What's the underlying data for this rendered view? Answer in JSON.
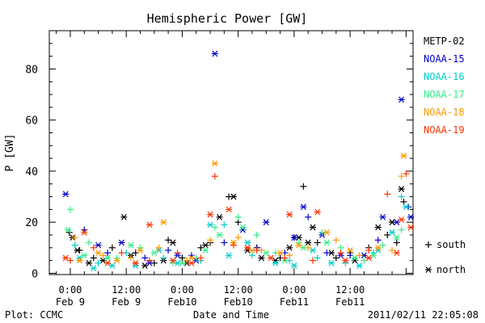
{
  "chart_data": {
    "type": "scatter",
    "title": "Hemispheric Power [GW]",
    "xlabel": "Date and Time",
    "ylabel": "P [GW]",
    "ylim": [
      -0.5,
      95
    ],
    "yticks": [
      0,
      20,
      40,
      60,
      80
    ],
    "x_unit": "hours since 2011-02-09 00:00 UT",
    "xlim": [
      -4.5,
      73.5
    ],
    "xticks": [
      {
        "x": 0,
        "line1": "0:00",
        "line2": "Feb 9"
      },
      {
        "x": 12,
        "line1": "12:00",
        "line2": "Feb 9"
      },
      {
        "x": 24,
        "line1": "0:00",
        "line2": "Feb10"
      },
      {
        "x": 36,
        "line1": "12:00",
        "line2": "Feb10"
      },
      {
        "x": 48,
        "line1": "0:00",
        "line2": "Feb11"
      },
      {
        "x": 60,
        "line1": "12:00",
        "line2": "Feb11"
      }
    ],
    "legend_position": "right",
    "marker_legend": [
      {
        "symbol": "+",
        "label": "south"
      },
      {
        "symbol": "*",
        "label": "north"
      }
    ],
    "series": [
      {
        "name": "METP-02",
        "color": "#000000",
        "south": [
          [
            -0.2,
            16
          ],
          [
            2,
            9
          ],
          [
            5,
            6
          ],
          [
            9,
            10
          ],
          [
            14,
            8
          ],
          [
            18,
            4
          ],
          [
            21,
            13
          ],
          [
            24,
            6
          ],
          [
            28,
            10
          ],
          [
            30,
            12
          ],
          [
            34,
            30
          ],
          [
            36,
            20
          ],
          [
            40,
            10
          ],
          [
            45,
            6
          ],
          [
            48,
            14
          ],
          [
            50,
            34
          ],
          [
            53,
            12
          ],
          [
            57,
            6
          ],
          [
            60,
            8
          ],
          [
            64,
            10
          ],
          [
            68,
            15
          ],
          [
            70,
            12
          ],
          [
            71.5,
            28
          ]
        ],
        "north": [
          [
            0.5,
            14
          ],
          [
            1.5,
            9
          ],
          [
            4,
            4
          ],
          [
            7,
            5
          ],
          [
            11.5,
            22
          ],
          [
            13,
            7
          ],
          [
            16,
            3
          ],
          [
            20,
            5
          ],
          [
            22,
            12
          ],
          [
            25,
            4
          ],
          [
            29,
            11
          ],
          [
            32,
            22
          ],
          [
            35,
            30
          ],
          [
            38,
            9
          ],
          [
            41,
            6
          ],
          [
            44,
            5
          ],
          [
            47,
            10
          ],
          [
            49,
            14
          ],
          [
            51,
            12
          ],
          [
            52,
            18
          ],
          [
            56,
            8
          ],
          [
            61,
            5
          ],
          [
            66,
            18
          ],
          [
            69,
            20
          ],
          [
            71,
            33
          ]
        ]
      },
      {
        "name": "NOAA-15",
        "color": "#0000cc",
        "south": [
          [
            3,
            17
          ],
          [
            8,
            8
          ],
          [
            16,
            6
          ],
          [
            21,
            9
          ],
          [
            26,
            7
          ],
          [
            33,
            12
          ],
          [
            40,
            10
          ],
          [
            46,
            8
          ],
          [
            51,
            22
          ],
          [
            55,
            8
          ],
          [
            60,
            7
          ],
          [
            66,
            13
          ],
          [
            72.5,
            26
          ]
        ],
        "north": [
          [
            -1,
            31
          ],
          [
            6,
            11
          ],
          [
            11,
            12
          ],
          [
            17,
            4
          ],
          [
            23,
            7
          ],
          [
            27,
            5
          ],
          [
            31,
            86
          ],
          [
            37,
            17
          ],
          [
            42,
            20
          ],
          [
            48,
            14
          ],
          [
            50,
            26
          ],
          [
            54,
            15
          ],
          [
            58,
            7
          ],
          [
            63,
            7
          ],
          [
            67,
            22
          ],
          [
            70,
            20
          ],
          [
            71,
            68
          ],
          [
            73,
            22
          ]
        ]
      },
      {
        "name": "NOAA-16",
        "color": "#00cccc",
        "south": [
          [
            1,
            11
          ],
          [
            6,
            4
          ],
          [
            12,
            8
          ],
          [
            20,
            6
          ],
          [
            28,
            5
          ],
          [
            33,
            19
          ],
          [
            39,
            7
          ],
          [
            47,
            5
          ],
          [
            53,
            6
          ],
          [
            59,
            4
          ],
          [
            65,
            8
          ],
          [
            71,
            30
          ]
        ],
        "north": [
          [
            2,
            6
          ],
          [
            5,
            2
          ],
          [
            9,
            3
          ],
          [
            14,
            3
          ],
          [
            19,
            9
          ],
          [
            23,
            4
          ],
          [
            30,
            19
          ],
          [
            34,
            7
          ],
          [
            38,
            12
          ],
          [
            44,
            4
          ],
          [
            48,
            3
          ],
          [
            52,
            9
          ],
          [
            56,
            4
          ],
          [
            62,
            3
          ],
          [
            66,
            9
          ],
          [
            69,
            16
          ],
          [
            72,
            26
          ]
        ]
      },
      {
        "name": "NOAA-17",
        "color": "#33ee88",
        "south": [
          [
            0,
            25
          ],
          [
            4,
            12
          ],
          [
            10,
            6
          ],
          [
            15,
            10
          ],
          [
            22,
            4
          ],
          [
            27,
            6
          ],
          [
            31,
            18
          ],
          [
            36,
            22
          ],
          [
            40,
            15
          ],
          [
            44,
            8
          ],
          [
            49,
            12
          ],
          [
            54,
            16
          ],
          [
            58,
            10
          ],
          [
            63,
            5
          ],
          [
            67,
            11
          ],
          [
            71,
            17
          ]
        ],
        "north": [
          [
            -0.5,
            17
          ],
          [
            3,
            7
          ],
          [
            8,
            6
          ],
          [
            13,
            11
          ],
          [
            18,
            8
          ],
          [
            24,
            4
          ],
          [
            29,
            9
          ],
          [
            32,
            15
          ],
          [
            37,
            18
          ],
          [
            42,
            8
          ],
          [
            46,
            5
          ],
          [
            50,
            10
          ],
          [
            55,
            12
          ],
          [
            61,
            6
          ],
          [
            65,
            7
          ],
          [
            70,
            14
          ]
        ]
      },
      {
        "name": "NOAA-18",
        "color": "#ff9900",
        "south": [
          [
            1,
            14
          ],
          [
            7,
            7
          ],
          [
            13,
            6
          ],
          [
            19,
            10
          ],
          [
            25,
            5
          ],
          [
            30,
            13
          ],
          [
            36,
            14
          ],
          [
            41,
            9
          ],
          [
            47,
            7
          ],
          [
            51,
            10
          ],
          [
            57,
            13
          ],
          [
            62,
            7
          ],
          [
            69,
            9
          ],
          [
            71,
            38
          ]
        ],
        "north": [
          [
            2,
            5
          ],
          [
            6,
            8
          ],
          [
            10,
            5
          ],
          [
            15,
            9
          ],
          [
            20,
            20
          ],
          [
            26,
            6
          ],
          [
            31,
            43
          ],
          [
            35,
            12
          ],
          [
            39,
            9
          ],
          [
            45,
            8
          ],
          [
            49,
            11
          ],
          [
            55,
            16
          ],
          [
            60,
            9
          ],
          [
            66,
            10
          ],
          [
            71.5,
            46
          ]
        ]
      },
      {
        "name": "NOAA-19",
        "color": "#ff3300",
        "south": [
          [
            0,
            5
          ],
          [
            5,
            10
          ],
          [
            11,
            8
          ],
          [
            17,
            5
          ],
          [
            23,
            8
          ],
          [
            28,
            6
          ],
          [
            31,
            38
          ],
          [
            35,
            11
          ],
          [
            40,
            9
          ],
          [
            46,
            6
          ],
          [
            52,
            5
          ],
          [
            58,
            8
          ],
          [
            64,
            9
          ],
          [
            68,
            31
          ],
          [
            72,
            39
          ]
        ],
        "north": [
          [
            -1,
            6
          ],
          [
            3,
            16
          ],
          [
            8,
            4
          ],
          [
            14,
            4
          ],
          [
            17,
            19
          ],
          [
            22,
            5
          ],
          [
            26,
            4
          ],
          [
            30,
            23
          ],
          [
            34,
            25
          ],
          [
            38,
            10
          ],
          [
            43,
            6
          ],
          [
            47,
            23
          ],
          [
            53,
            24
          ],
          [
            59,
            5
          ],
          [
            64,
            6
          ],
          [
            70,
            8
          ],
          [
            71,
            21
          ],
          [
            73,
            18
          ]
        ]
      }
    ]
  },
  "footer": {
    "plot_credit": "Plot: CCMC",
    "timestamp": "2011/02/11 22:05:08"
  }
}
